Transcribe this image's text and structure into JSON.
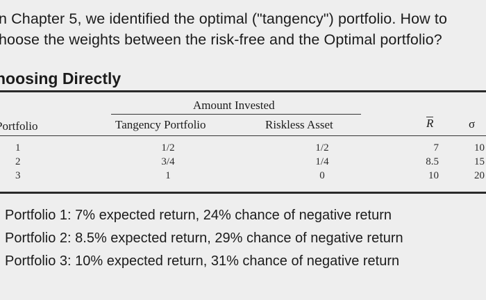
{
  "intro": {
    "line1": "n Chapter 5, we identified the optimal (\"tangency\") portfolio. How to",
    "line2": "hoose the weights between the risk-free and the Optimal portfolio?"
  },
  "section_heading": "hoosing Directly",
  "table": {
    "group_header": "Amount Invested",
    "headers": {
      "portfolio": "Portfolio",
      "tangency": "Tangency Portfolio",
      "riskless": "Riskless Asset",
      "rbar": "R",
      "sigma": "σ"
    },
    "rows": [
      {
        "portfolio": "1",
        "tangency": "1/2",
        "riskless": "1/2",
        "rbar": "7",
        "sigma": "10"
      },
      {
        "portfolio": "2",
        "tangency": "3/4",
        "riskless": "1/4",
        "rbar": "8.5",
        "sigma": "15"
      },
      {
        "portfolio": "3",
        "tangency": "1",
        "riskless": "0",
        "rbar": "10",
        "sigma": "20"
      }
    ]
  },
  "summary": [
    "Portfolio 1: 7% expected return, 24% chance of negative return",
    "Portfolio 2: 8.5% expected return, 29% chance of negative return",
    "Portfolio 3: 10% expected return, 31% chance of negative return"
  ]
}
